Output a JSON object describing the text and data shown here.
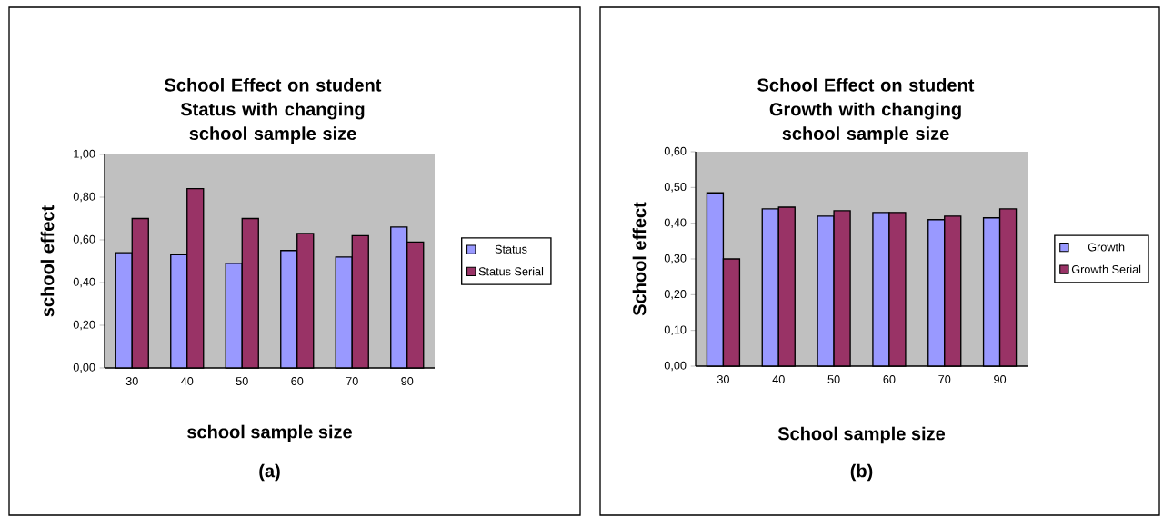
{
  "chart_data": [
    {
      "type": "bar",
      "title": "School Effect on student Status with changing school sample size",
      "xlabel": "school sample size",
      "ylabel": "school effect",
      "annotations": [
        "(a)"
      ],
      "categories": [
        "30",
        "40",
        "50",
        "60",
        "70",
        "90"
      ],
      "series": [
        {
          "name": "Status",
          "color": "#9999ff",
          "values": [
            0.54,
            0.53,
            0.49,
            0.55,
            0.52,
            0.66
          ]
        },
        {
          "name": "Status Serial",
          "color": "#993366",
          "values": [
            0.7,
            0.84,
            0.7,
            0.63,
            0.62,
            0.59
          ]
        }
      ],
      "ylim": [
        0,
        1
      ],
      "yticks": [
        {
          "value": 0,
          "label": "0,00"
        },
        {
          "value": 0.2,
          "label": "0,20"
        },
        {
          "value": 0.4,
          "label": "0,40"
        },
        {
          "value": 0.6,
          "label": "0,60"
        },
        {
          "value": 0.8,
          "label": "0,80"
        },
        {
          "value": 1,
          "label": "1,00"
        }
      ],
      "legend": "right"
    },
    {
      "type": "bar",
      "title": "School Effect on student Growth with changing school sample size",
      "xlabel": "School sample size",
      "ylabel": "School effect",
      "annotations": [
        "(b)"
      ],
      "categories": [
        "30",
        "40",
        "50",
        "60",
        "70",
        "90"
      ],
      "series": [
        {
          "name": "Growth",
          "color": "#9999ff",
          "values": [
            0.485,
            0.44,
            0.42,
            0.43,
            0.41,
            0.415
          ]
        },
        {
          "name": "Growth Serial",
          "color": "#993366",
          "values": [
            0.3,
            0.445,
            0.435,
            0.43,
            0.42,
            0.44
          ]
        }
      ],
      "ylim": [
        0,
        0.6
      ],
      "yticks": [
        {
          "value": 0,
          "label": "0,00"
        },
        {
          "value": 0.1,
          "label": "0,10"
        },
        {
          "value": 0.2,
          "label": "0,20"
        },
        {
          "value": 0.3,
          "label": "0,30"
        },
        {
          "value": 0.4,
          "label": "0,40"
        },
        {
          "value": 0.5,
          "label": "0,50"
        },
        {
          "value": 0.6,
          "label": "0,60"
        }
      ],
      "legend": "right"
    }
  ]
}
